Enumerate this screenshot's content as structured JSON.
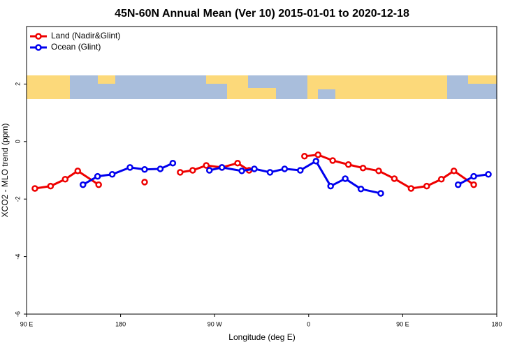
{
  "chart_data": {
    "type": "line",
    "title": "45N-60N Annual Mean (Ver 10)   2015-01-01 to 2020-12-18",
    "xlabel": "Longitude (deg E)",
    "ylabel": "XCO2 - MLO trend (ppm)",
    "xlim": [
      90,
      540
    ],
    "xticks": [
      {
        "value": 90,
        "label": "90 E"
      },
      {
        "value": 180,
        "label": "180"
      },
      {
        "value": 270,
        "label": "90 W"
      },
      {
        "value": 360,
        "label": "0"
      },
      {
        "value": 450,
        "label": "90 E"
      },
      {
        "value": 540,
        "label": "180"
      }
    ],
    "ylim": [
      -6,
      4
    ],
    "yticks": [
      -6,
      -4,
      -2,
      0,
      2
    ],
    "legend": "topleft",
    "series": [
      {
        "name": "Land (Nadir&Glint)",
        "color": "#ee0000",
        "x": [
          98,
          113,
          127,
          139,
          159,
          181,
          203,
          220,
          237,
          249,
          262,
          277,
          292,
          303,
          330,
          356,
          369,
          383,
          398,
          412,
          427,
          442,
          458,
          473,
          487,
          499,
          518
        ],
        "values": [
          -1.63,
          -1.55,
          -1.31,
          -1.02,
          -1.5,
          null,
          -1.41,
          null,
          -1.07,
          -1.0,
          -0.83,
          -0.9,
          -0.75,
          -1.0,
          null,
          -0.51,
          -0.46,
          -0.66,
          -0.8,
          -0.92,
          -1.02,
          -1.29,
          -1.63,
          -1.55,
          -1.31,
          -1.02,
          -1.5
        ]
      },
      {
        "name": "Ocean (Glint)",
        "color": "#0000ee",
        "x": [
          144,
          158,
          172,
          189,
          203,
          218,
          230,
          248,
          265,
          277,
          296,
          308,
          323,
          337,
          352,
          367,
          381,
          395,
          410,
          429,
          466,
          503,
          518,
          532
        ],
        "values": [
          -1.5,
          -1.21,
          -1.14,
          -0.9,
          -0.97,
          -0.95,
          -0.75,
          null,
          -1.0,
          -0.9,
          -1.02,
          -0.95,
          -1.07,
          -0.95,
          -1.0,
          -0.68,
          -1.55,
          -1.29,
          -1.65,
          -1.8,
          null,
          -1.5,
          -1.21,
          -1.14
        ]
      }
    ]
  }
}
